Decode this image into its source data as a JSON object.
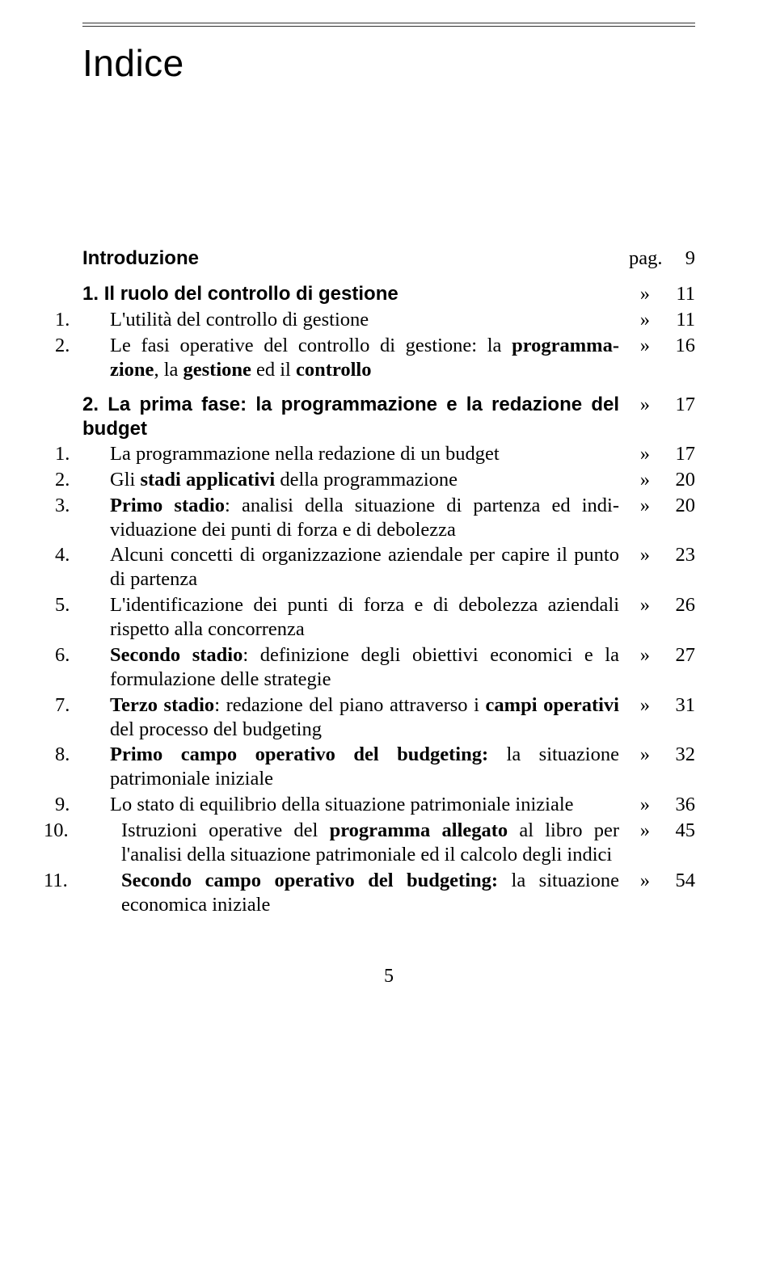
{
  "title": "Indice",
  "intro": {
    "label": "Introduzione",
    "sep": "pag.",
    "page": "9"
  },
  "chapter1": {
    "num": "1.",
    "title": "Il ruolo del controllo di gestione",
    "sep": "»",
    "page": "11",
    "items": [
      {
        "num": "1.",
        "text": "L'utilità del controllo di gestione",
        "sep": "»",
        "page": "11"
      },
      {
        "num": "2.",
        "text_pre": "Le fasi operative del controllo di gestione: la ",
        "bold1": "programma­zione",
        "text_mid": ", la ",
        "bold2": "gestione",
        "text_mid2": " ed il ",
        "bold3": "controllo",
        "sep": "»",
        "page": "16"
      }
    ]
  },
  "chapter2": {
    "num": "2.",
    "title": "La prima fase: la programmazione e la redazione del budget",
    "sep": "»",
    "page": "17",
    "items": [
      {
        "num": "1.",
        "text": "La programmazione nella redazione di un budget",
        "sep": "»",
        "page": "17"
      },
      {
        "num": "2.",
        "text_pre": "Gli ",
        "bold1": "stadi applicativi",
        "text_post": " della programmazione",
        "sep": "»",
        "page": "20"
      },
      {
        "num": "3.",
        "bold1": "Primo stadio",
        "text_post": ": analisi della situazione di partenza ed indi­viduazione dei punti di forza e di debolezza",
        "sep": "»",
        "page": "20"
      },
      {
        "num": "4.",
        "text": "Alcuni concetti di organizzazione aziendale per capire il punto di partenza",
        "sep": "»",
        "page": "23"
      },
      {
        "num": "5.",
        "text": "L'identificazione dei punti di forza e di debolezza aziendali rispetto alla concorrenza",
        "sep": "»",
        "page": "26"
      },
      {
        "num": "6.",
        "bold1": "Secondo stadio",
        "text_post": ": definizione degli obiettivi economici e la formulazione delle strategie",
        "sep": "»",
        "page": "27"
      },
      {
        "num": "7.",
        "bold1": "Terzo stadio",
        "text_mid": ": redazione del piano attraverso i ",
        "bold2": "campi ope­rativi",
        "text_post": " del processo del budgeting",
        "sep": "»",
        "page": "31"
      },
      {
        "num": "8.",
        "bold1": "Primo campo operativo del budgeting:",
        "text_post": " la situazione patrimoniale iniziale",
        "sep": "»",
        "page": "32"
      },
      {
        "num": "9.",
        "text": "Lo stato di equilibrio della situazione patrimoniale iniziale",
        "sep": "»",
        "page": "36"
      },
      {
        "num": "10.",
        "text_pre": "Istruzioni operative del ",
        "bold1": "programma allegato",
        "text_post": " al libro per l'analisi della situazione patrimoniale ed il calcolo degli indici",
        "sep": "»",
        "page": "45"
      },
      {
        "num": "11.",
        "bold1": "Secondo campo operativo del budgeting:",
        "text_post": " la situazione economica iniziale",
        "sep": "»",
        "page": "54"
      }
    ]
  },
  "footer_page": "5"
}
